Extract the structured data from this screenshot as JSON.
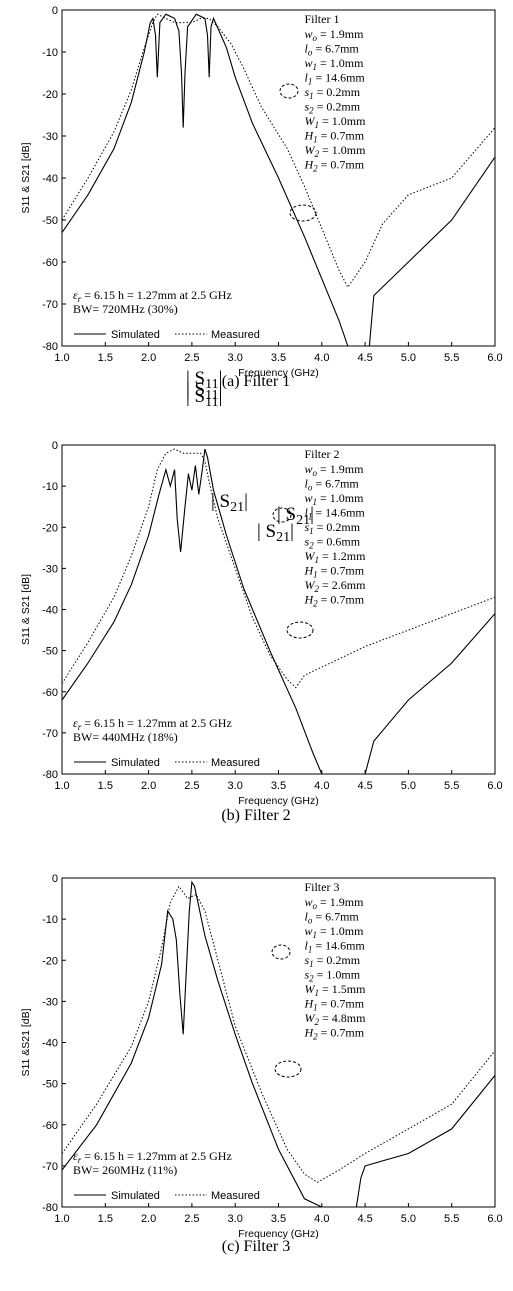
{
  "chart_data": [
    {
      "type": "line",
      "caption": "(a) Filter 1",
      "title": "Filter 1",
      "xlabel": "Frequency (GHz)",
      "ylabel": "S11 & S21 [dB]",
      "xlim": [
        1.0,
        6.0
      ],
      "ylim": [
        -80,
        0
      ],
      "xticks": [
        "1.0",
        "1.5",
        "2.0",
        "2.5",
        "3.0",
        "3.5",
        "4.0",
        "4.5",
        "5.0",
        "5.5",
        "6.0"
      ],
      "yticks": [
        "0",
        "-10",
        "-20",
        "-30",
        "-40",
        "-50",
        "-60",
        "-70",
        "-80"
      ],
      "params": [
        "w_o = 1.9mm",
        "l_o = 6.7mm",
        "w_1 = 1.0mm",
        "l_1 = 14.6mm",
        "s_1 = 0.2mm",
        "s_2 = 0.2mm",
        "W_1 = 1.0mm",
        "H_1 = 0.7mm",
        "W_2 = 1.0mm",
        "H_2 = 0.7mm"
      ],
      "note1": "εr = 6.15 h = 1.27mm at 2.5 GHz",
      "note2": "BW= 720MHz (30%)",
      "s11_label": "|S11|",
      "s21_label": "|S21|",
      "legend": [
        "Simulated",
        "Measured"
      ],
      "series": [
        {
          "name": "Simulated",
          "x": [
            1.0,
            1.3,
            1.6,
            1.8,
            1.95,
            2.02,
            2.05,
            2.08,
            2.1,
            2.13,
            2.2,
            2.3,
            2.35,
            2.38,
            2.4,
            2.42,
            2.45,
            2.55,
            2.65,
            2.68,
            2.7,
            2.72,
            2.75,
            2.9,
            3.0,
            3.2,
            3.5,
            3.8,
            4.0,
            4.2,
            4.3,
            4.4,
            4.5,
            4.55,
            4.6,
            5.0,
            5.5,
            6.0
          ],
          "y": [
            -53,
            -44,
            -33,
            -22,
            -10,
            -3,
            -2,
            -6,
            -16,
            -3,
            -1,
            -2,
            -5,
            -15,
            -28,
            -15,
            -4,
            -1,
            -2,
            -6,
            -16,
            -4,
            -2,
            -9,
            -16,
            -27,
            -40,
            -54,
            -64,
            -74,
            -80,
            -80,
            -80,
            -80,
            -68,
            -60,
            -50,
            -35
          ]
        },
        {
          "name": "Measured",
          "x": [
            1.0,
            1.3,
            1.6,
            1.8,
            1.95,
            2.05,
            2.1,
            2.2,
            2.3,
            2.4,
            2.5,
            2.6,
            2.7,
            2.8,
            2.95,
            3.1,
            3.3,
            3.6,
            3.8,
            4.0,
            4.2,
            4.3,
            4.5,
            4.7,
            5.0,
            5.5,
            6.0
          ],
          "y": [
            -50,
            -40,
            -29,
            -19,
            -9,
            -3,
            -1,
            -2,
            -3,
            -3,
            -3,
            -2,
            -2,
            -4,
            -8,
            -14,
            -23,
            -33,
            -42,
            -52,
            -62,
            -66,
            -60,
            -51,
            -44,
            -40,
            -28
          ]
        }
      ]
    },
    {
      "type": "line",
      "caption": "(b) Filter 2",
      "title": "Filter 2",
      "xlabel": "Frequency (GHz)",
      "ylabel": "S11 & S21 [dB]",
      "xlim": [
        1.0,
        6.0
      ],
      "ylim": [
        -80,
        0
      ],
      "xticks": [
        "1.0",
        "1.5",
        "2.0",
        "2.5",
        "3.0",
        "3.5",
        "4.0",
        "4.5",
        "5.0",
        "5.5",
        "6.0"
      ],
      "yticks": [
        "0",
        "-10",
        "-20",
        "-30",
        "-40",
        "-50",
        "-60",
        "-70",
        "-80"
      ],
      "params": [
        "w_o = 1.9mm",
        "l_o = 6.7mm",
        "w_1 = 1.0mm",
        "l_1 = 14.6mm",
        "s_1 = 0.2mm",
        "s_2 = 0.6mm",
        "W_1 = 1.2mm",
        "H_1 = 0.7mm",
        "W_2 = 2.6mm",
        "H_2 = 0.7mm"
      ],
      "note1": "εr = 6.15 h = 1.27mm at 2.5 GHz",
      "note2": "BW= 440MHz (18%)",
      "s11_label": "|S11|",
      "s21_label": "|S21|",
      "legend": [
        "Simulated",
        "Measured"
      ],
      "series": [
        {
          "name": "Simulated",
          "x": [
            1.0,
            1.3,
            1.6,
            1.8,
            2.0,
            2.12,
            2.2,
            2.25,
            2.3,
            2.33,
            2.37,
            2.42,
            2.46,
            2.5,
            2.54,
            2.58,
            2.62,
            2.65,
            2.68,
            2.75,
            2.9,
            3.1,
            3.4,
            3.7,
            3.9,
            4.0,
            4.2,
            4.4,
            4.5,
            4.6,
            5.0,
            5.5,
            6.0
          ],
          "y": [
            -62,
            -53,
            -43,
            -34,
            -22,
            -12,
            -6,
            -10,
            -6,
            -18,
            -26,
            -15,
            -7,
            -11,
            -5,
            -12,
            -6,
            -1,
            -3,
            -11,
            -22,
            -35,
            -50,
            -64,
            -75,
            -80,
            -80,
            -80,
            -80,
            -72,
            -62,
            -53,
            -41
          ]
        },
        {
          "name": "Measured",
          "x": [
            1.0,
            1.3,
            1.6,
            1.8,
            2.0,
            2.1,
            2.2,
            2.3,
            2.4,
            2.5,
            2.6,
            2.65,
            2.7,
            2.8,
            3.0,
            3.2,
            3.4,
            3.6,
            3.7,
            3.8,
            4.0,
            4.5,
            5.0,
            5.5,
            6.0
          ],
          "y": [
            -58,
            -48,
            -37,
            -27,
            -15,
            -6,
            -2,
            -1,
            -2,
            -2,
            -2,
            -4,
            -9,
            -18,
            -30,
            -42,
            -51,
            -57,
            -59,
            -56,
            -54,
            -49,
            -45,
            -41,
            -37
          ]
        }
      ]
    },
    {
      "type": "line",
      "caption": "(c) Filter 3",
      "title": "Filter 3",
      "xlabel": "Frequency (GHz)",
      "ylabel": "S11 &S21 [dB]",
      "xlim": [
        1.0,
        6.0
      ],
      "ylim": [
        -80,
        0
      ],
      "xticks": [
        "1.0",
        "1.5",
        "2.0",
        "2.5",
        "3.0",
        "3.5",
        "4.0",
        "4.5",
        "5.0",
        "5.5",
        "6.0"
      ],
      "yticks": [
        "0",
        "-10",
        "-20",
        "-30",
        "-40",
        "-50",
        "-60",
        "-70",
        "-80"
      ],
      "params": [
        "w_o = 1.9mm",
        "l_o = 6.7mm",
        "w_1 = 1.0mm",
        "l_1 = 14.6mm",
        "s_1 = 0.2mm",
        "s_2 = 1.0mm",
        "W_1 = 1.5mm",
        "H_1 = 0.7mm",
        "W_2 = 4.8mm",
        "H_2 = 0.7mm"
      ],
      "note1": "εr = 6.15 h = 1.27mm at 2.5 GHz",
      "note2": "BW= 260MHz (11%)",
      "s11_label": "|S11|",
      "s21_label": "|S21|",
      "legend": [
        "Simulated",
        "Measured"
      ],
      "series": [
        {
          "name": "Simulated",
          "x": [
            1.0,
            1.4,
            1.8,
            2.0,
            2.15,
            2.22,
            2.28,
            2.32,
            2.36,
            2.4,
            2.43,
            2.47,
            2.5,
            2.53,
            2.57,
            2.65,
            2.8,
            3.0,
            3.2,
            3.5,
            3.8,
            4.0,
            4.2,
            4.4,
            4.45,
            4.5,
            5.0,
            5.5,
            6.0
          ],
          "y": [
            -71,
            -60,
            -45,
            -34,
            -21,
            -8,
            -10,
            -15,
            -28,
            -38,
            -25,
            -8,
            -1,
            -2,
            -6,
            -14,
            -25,
            -38,
            -50,
            -66,
            -78,
            -80,
            -80,
            -80,
            -73,
            -70,
            -67,
            -61,
            -48
          ]
        },
        {
          "name": "Measured",
          "x": [
            1.0,
            1.4,
            1.8,
            2.0,
            2.15,
            2.25,
            2.35,
            2.45,
            2.55,
            2.65,
            2.8,
            3.0,
            3.3,
            3.6,
            3.8,
            3.95,
            4.2,
            4.5,
            5.0,
            5.5,
            6.0
          ],
          "y": [
            -67,
            -55,
            -41,
            -30,
            -17,
            -6,
            -2,
            -5,
            -4,
            -8,
            -20,
            -36,
            -52,
            -66,
            -72,
            -74,
            -71,
            -67,
            -61,
            -55,
            -42
          ]
        }
      ]
    }
  ]
}
